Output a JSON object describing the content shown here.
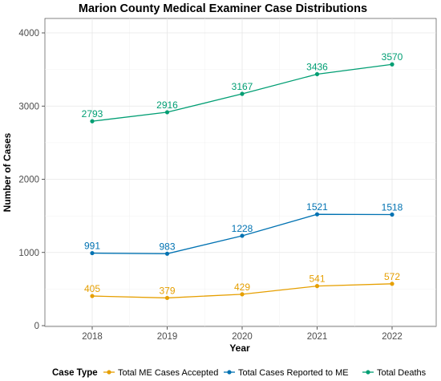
{
  "chart_data": {
    "type": "line",
    "title": "Marion County Medical Examiner Case Distributions",
    "xlabel": "Year",
    "ylabel": "Number of Cases",
    "categories": [
      "2018",
      "2019",
      "2020",
      "2021",
      "2022"
    ],
    "ylim": [
      0,
      4000
    ],
    "yticks": [
      0,
      1000,
      2000,
      3000,
      4000
    ],
    "grid": true,
    "legend_title": "Case Type",
    "legend_position": "bottom",
    "series": [
      {
        "name": "Total ME Cases Accepted",
        "color": "#E69F00",
        "values": [
          405,
          379,
          429,
          541,
          572
        ]
      },
      {
        "name": "Total Cases Reported to ME",
        "color": "#0072B2",
        "values": [
          991,
          983,
          1228,
          1521,
          1518
        ]
      },
      {
        "name": "Total Deaths",
        "color": "#009E73",
        "values": [
          2793,
          2916,
          3167,
          3436,
          3570
        ]
      }
    ]
  }
}
